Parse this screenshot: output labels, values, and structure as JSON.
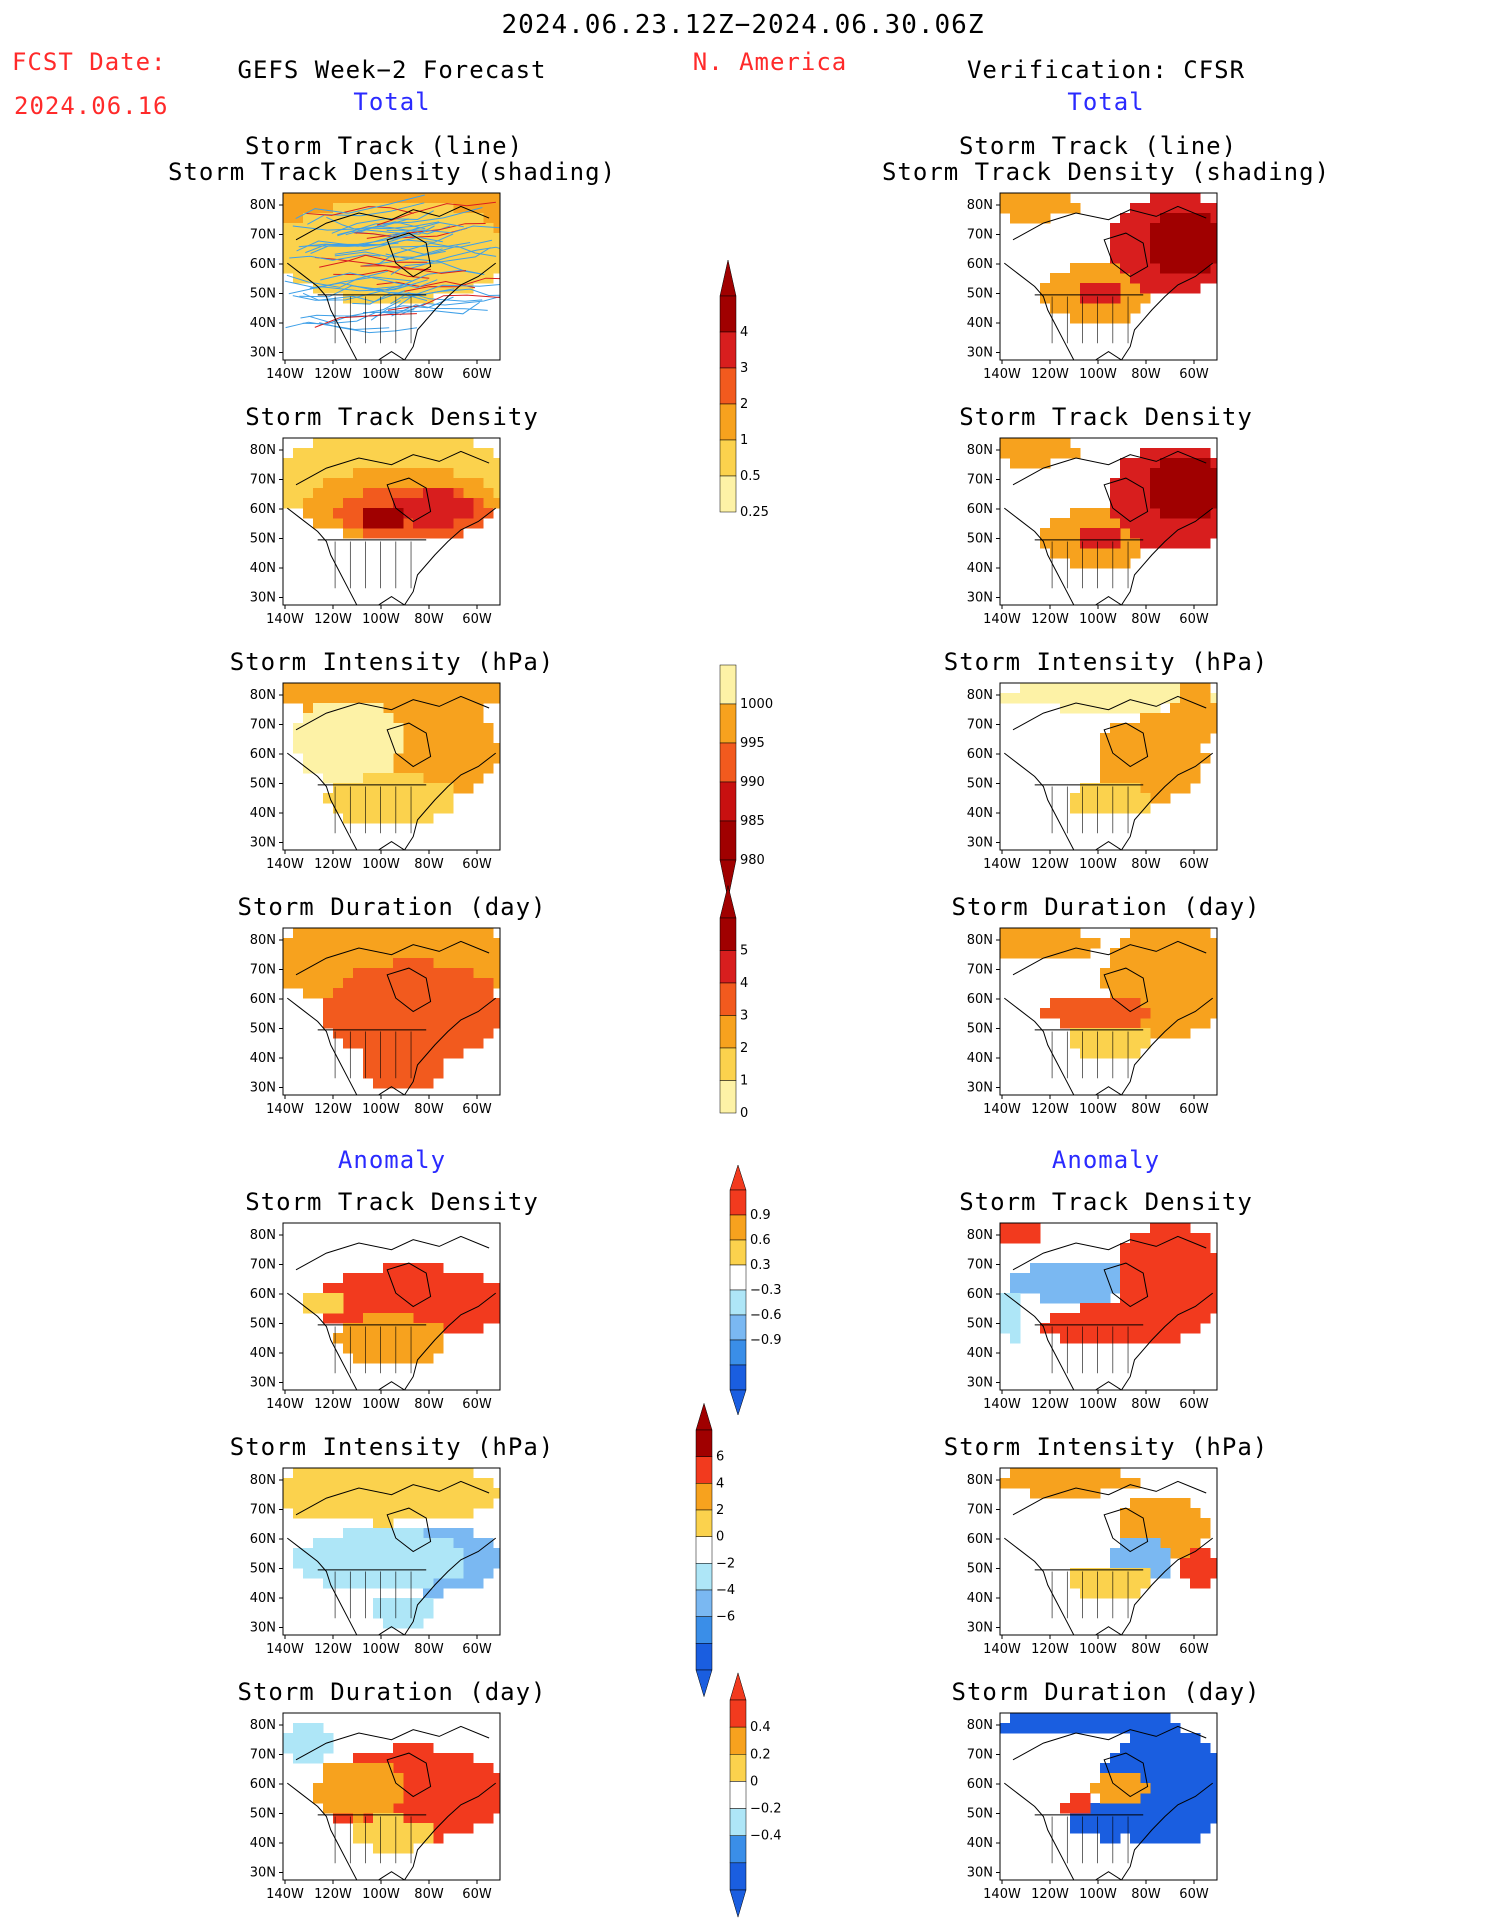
{
  "header": {
    "date_range": "2024.06.23.12Z−2024.06.30.06Z",
    "fcst_label": "FCST Date:",
    "fcst_date": "2024.06.16",
    "left_title": "GEFS Week−2 Forecast",
    "region": "N. America",
    "right_title": "Verification: CFSR",
    "total_label": "Total",
    "anomaly_label": "Anomaly"
  },
  "panel_titles": {
    "track_line": "Storm Track (line)",
    "track_density_shading": "Storm Track Density (shading)",
    "track_density": "Storm Track Density",
    "intensity": "Storm Intensity (hPa)",
    "duration": "Storm Duration (day)"
  },
  "axes": {
    "lat_labels": [
      "80N",
      "70N",
      "60N",
      "50N",
      "40N",
      "30N"
    ],
    "lon_labels": [
      "140W",
      "120W",
      "100W",
      "80W",
      "60W"
    ]
  },
  "colorbars": {
    "density": {
      "labels": [
        "4",
        "3",
        "2",
        "1",
        "0.5",
        "0.25"
      ],
      "colors": [
        "#a00000",
        "#d81e1e",
        "#f25a1e",
        "#f7a21e",
        "#fbd24d",
        "#fdf2a6"
      ]
    },
    "intensity": {
      "labels": [
        "1000",
        "995",
        "990",
        "985",
        "980"
      ],
      "colors": [
        "#fdf2a6",
        "#f7a21e",
        "#f25a1e",
        "#c81010",
        "#a00000"
      ]
    },
    "duration": {
      "labels": [
        "5",
        "4",
        "3",
        "2",
        "1",
        "0"
      ],
      "colors": [
        "#a00000",
        "#d81e1e",
        "#f25a1e",
        "#f7a21e",
        "#fbd24d",
        "#fdf2a6"
      ]
    },
    "anom_density": {
      "labels": [
        "0.9",
        "0.6",
        "0.3",
        "−0.3",
        "−0.6",
        "−0.9"
      ],
      "colors": [
        "#f23a1e",
        "#f7a21e",
        "#fbd24d",
        "#ffffff",
        "#aee6f7",
        "#7ab8f2",
        "#3a8ee8",
        "#1a5ee0"
      ]
    },
    "anom_intensity": {
      "labels": [
        "6",
        "4",
        "2",
        "0",
        "−2",
        "−4",
        "−6"
      ],
      "colors": [
        "#a00000",
        "#f23a1e",
        "#f7a21e",
        "#fbd24d",
        "#ffffff",
        "#aee6f7",
        "#7ab8f2",
        "#3a8ee8",
        "#1a5ee0"
      ]
    },
    "anom_duration": {
      "labels": [
        "0.4",
        "0.2",
        "0",
        "−0.2",
        "−0.4"
      ],
      "colors": [
        "#f23a1e",
        "#f7a21e",
        "#fbd24d",
        "#ffffff",
        "#aee6f7",
        "#3a8ee8",
        "#1a5ee0"
      ]
    }
  },
  "colors": {
    "title_red": "#ff2a2a",
    "title_blue": "#2a2aff",
    "track_line_blue": "#3fa0e8",
    "track_line_red": "#d81e1e"
  }
}
